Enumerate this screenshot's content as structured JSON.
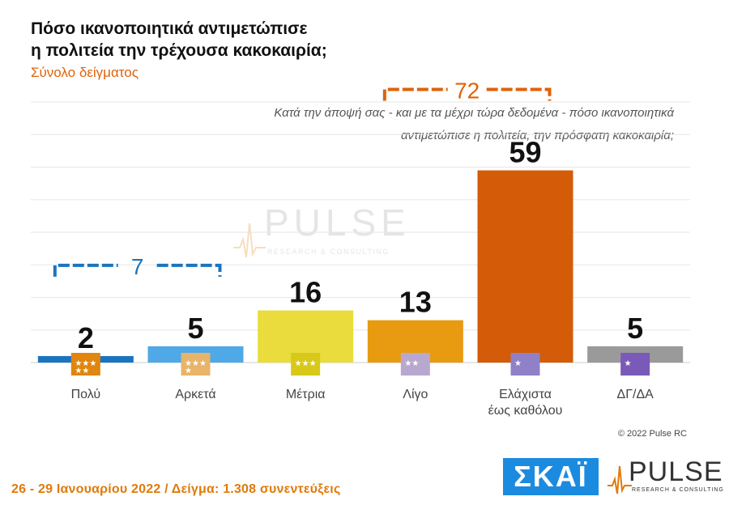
{
  "header": {
    "title_line1": "Πόσο ικανοποιητικά αντιμετώπισε",
    "title_line2": "η πολιτεία την τρέχουσα κακοκαιρία;",
    "subtitle": "Σύνολο δείγματος",
    "question_line1": "Κατά την άποψή σας - και με τα μέχρι τώρα δεδομένα - πόσο ικανοποιητικά",
    "question_line2": "αντιμετώπισε η πολιτεία, την πρόσφατη κακοκαιρία;"
  },
  "chart_data": {
    "type": "bar",
    "categories": [
      "Πολύ",
      "Αρκετά",
      "Μέτρια",
      "Λίγο",
      "Ελάχιστα\nέως καθόλου",
      "ΔΓ/ΔΑ"
    ],
    "values": [
      2,
      5,
      16,
      13,
      59,
      5
    ],
    "ylim": [
      0,
      80
    ],
    "grid": true,
    "colors": [
      "#1b74bf",
      "#4fa9e6",
      "#e9dc3c",
      "#e89a10",
      "#d45b07",
      "#9a9a9a"
    ],
    "icon_colors": [
      "#e0860e",
      "#e8b46a",
      "#d8c81a",
      "#b8a8d0",
      "#9080c8",
      "#7a5ab8"
    ],
    "icon_stars": [
      5,
      4,
      3,
      2,
      1,
      0
    ],
    "groups": [
      {
        "label": "7",
        "from": 0,
        "to": 1,
        "color": "#1b74bf"
      },
      {
        "label": "72",
        "from": 3,
        "to": 4,
        "color": "#e0620a"
      }
    ]
  },
  "watermark": {
    "text": "PULSE",
    "sub": "RESEARCH & CONSULTING"
  },
  "copyright": "© 2022 Pulse RC",
  "footer": "26 - 29 Ιανουαρίου 2022 / Δείγμα: 1.308 συνεντεύξεις",
  "logos": {
    "skai": "ΣΚΑΪ",
    "pulse": "PULSE",
    "pulse_sub": "RESEARCH & CONSULTING"
  }
}
